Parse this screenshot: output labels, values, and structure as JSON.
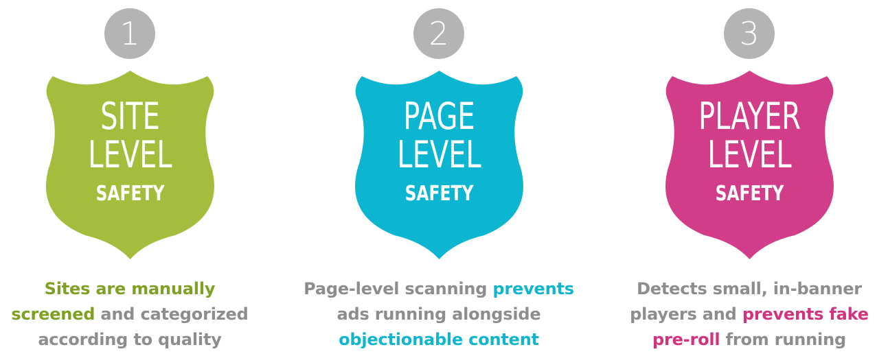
{
  "colors": {
    "badge": "#b4b4b4",
    "caption_gray": "#8d8d8d",
    "green": "#a5bd3d",
    "cyan": "#0db6d0",
    "magenta": "#d13d88"
  },
  "panels": [
    {
      "number": "1",
      "shield_color": "#a5bd3d",
      "shield_line1": "SITE",
      "shield_line2": "LEVEL",
      "shield_line3": "SAFETY",
      "caption": {
        "l1a": "Sites are manually",
        "l1b": "",
        "l2a": "screened",
        "l2b": " and categorized",
        "l3a": "according to quality",
        "l3b": ""
      }
    },
    {
      "number": "2",
      "shield_color": "#0db6d0",
      "shield_line1": "PAGE",
      "shield_line2": "LEVEL",
      "shield_line3": "SAFETY",
      "caption": {
        "l1a": "Page-level scanning ",
        "l1b": "prevents",
        "l2a": "ads running alongside",
        "l3a": "objectionable content"
      }
    },
    {
      "number": "3",
      "shield_color": "#d13d88",
      "shield_line1": "PLAYER",
      "shield_line2": "LEVEL",
      "shield_line3": "SAFETY",
      "caption": {
        "l1a": "Detects small, in-banner",
        "l2a": "players and ",
        "l2b": "prevents fake",
        "l3a": "pre-roll",
        "l3b": " from running"
      }
    }
  ]
}
